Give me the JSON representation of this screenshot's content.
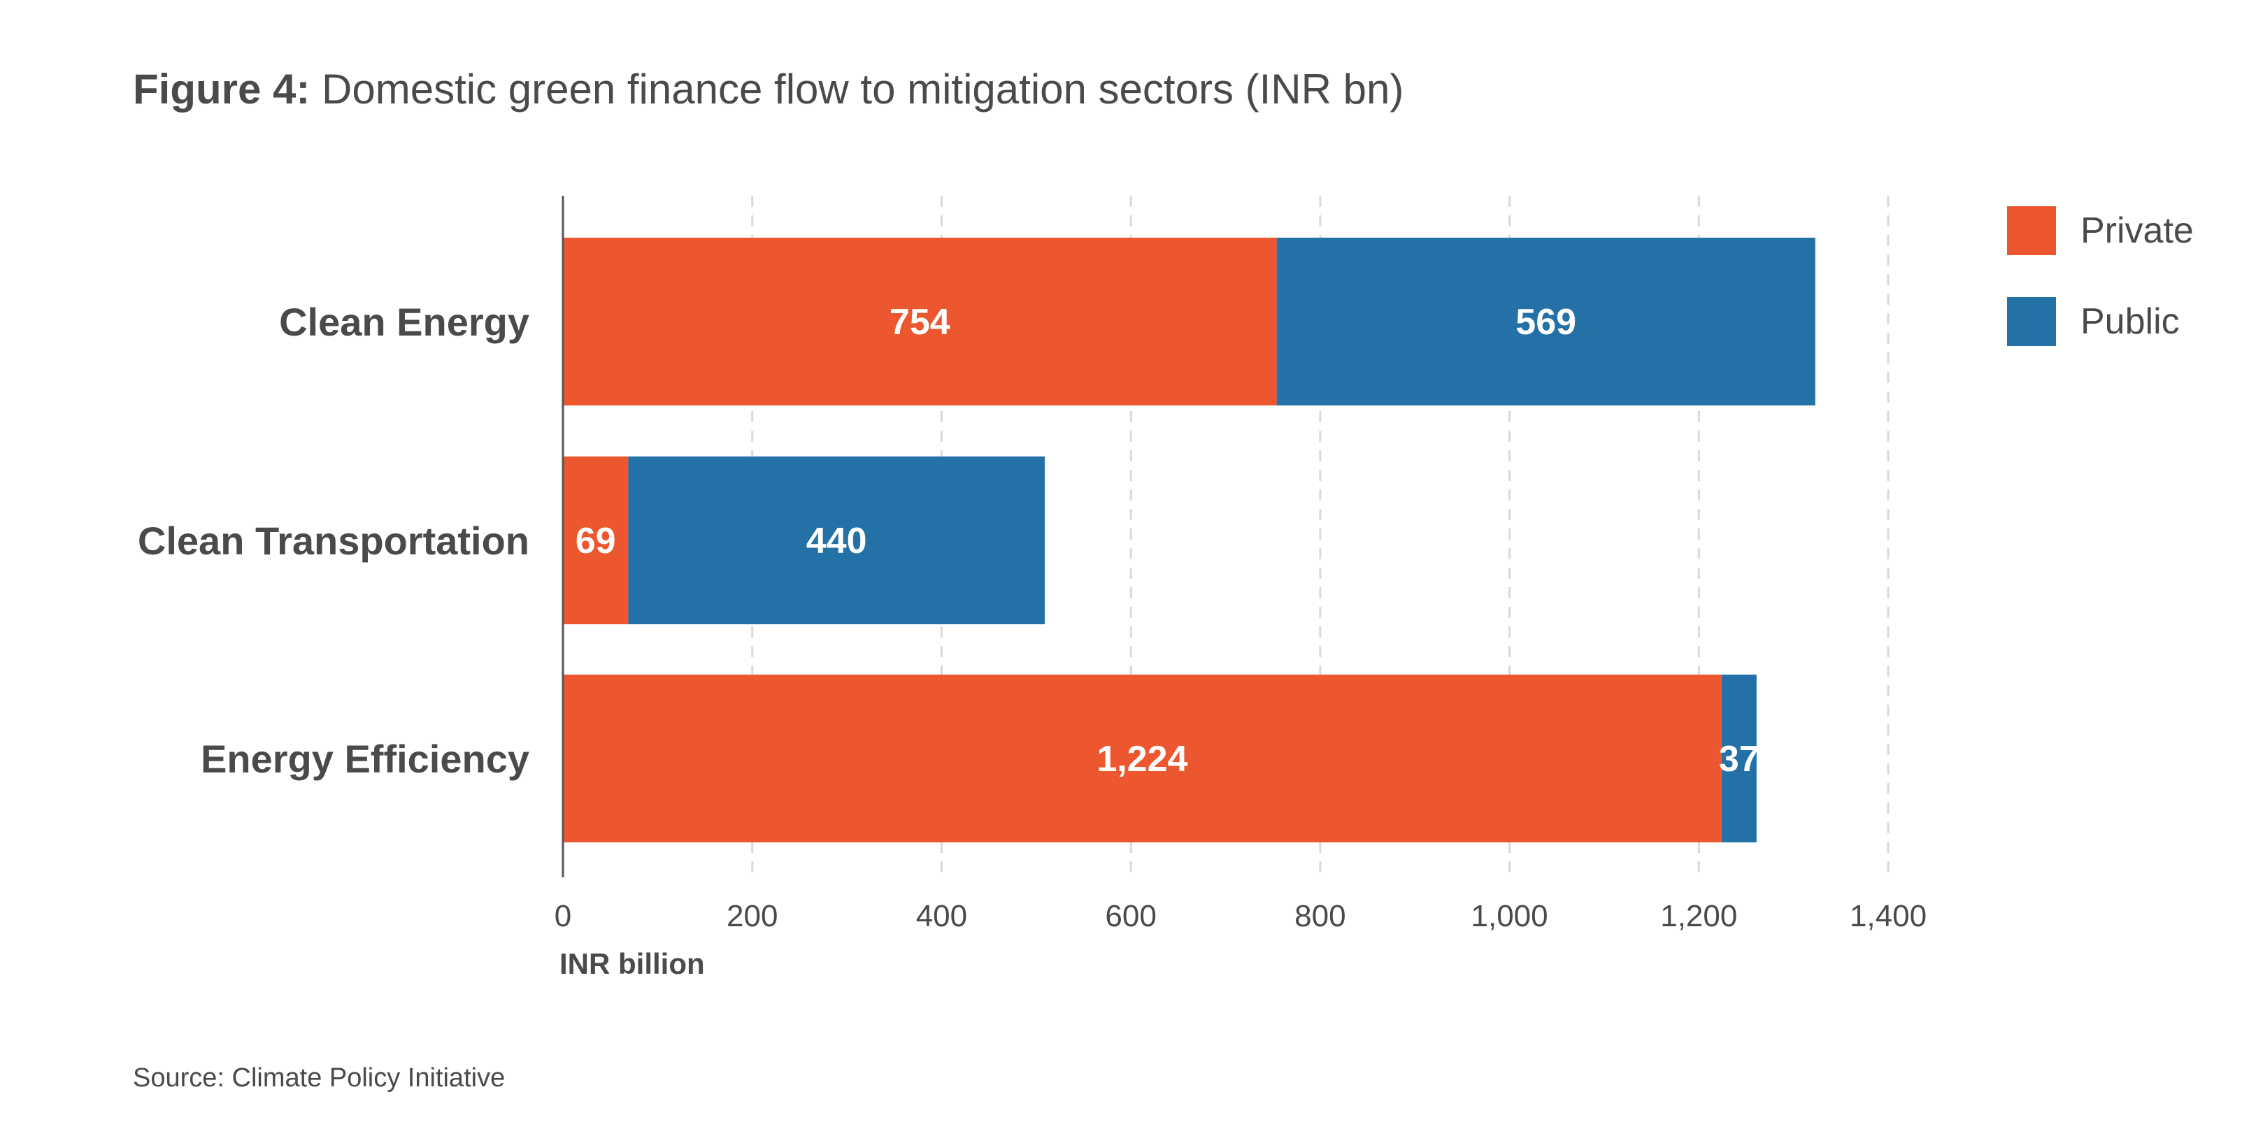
{
  "figure": {
    "title_prefix": "Figure 4:",
    "title_text": "Domestic green finance flow to mitigation sectors (INR bn)",
    "source": "Source: Climate Policy Initiative"
  },
  "colors": {
    "private": "#ec572f",
    "public": "#2471a8",
    "text": "#4a4a4a",
    "grid": "#d9d9d9",
    "axis": "#555555"
  },
  "chart_data": {
    "type": "bar",
    "orientation": "horizontal",
    "stacked": true,
    "categories": [
      "Clean Energy",
      "Clean Transportation",
      "Energy Efficiency"
    ],
    "series": [
      {
        "name": "Private",
        "values": [
          754,
          69,
          1224
        ],
        "labels": [
          "754",
          "69",
          "1,224"
        ]
      },
      {
        "name": "Public",
        "values": [
          569,
          440,
          37
        ],
        "labels": [
          "569",
          "440",
          "37"
        ]
      }
    ],
    "xlabel": "INR billion",
    "xlim": [
      0,
      1400
    ],
    "xticks": [
      0,
      200,
      400,
      600,
      800,
      1000,
      1200,
      1400
    ],
    "xtick_labels": [
      "0",
      "200",
      "400",
      "600",
      "800",
      "1,000",
      "1,200",
      "1,400"
    ],
    "grid": "vertical-dashed",
    "legend": "top-right"
  }
}
